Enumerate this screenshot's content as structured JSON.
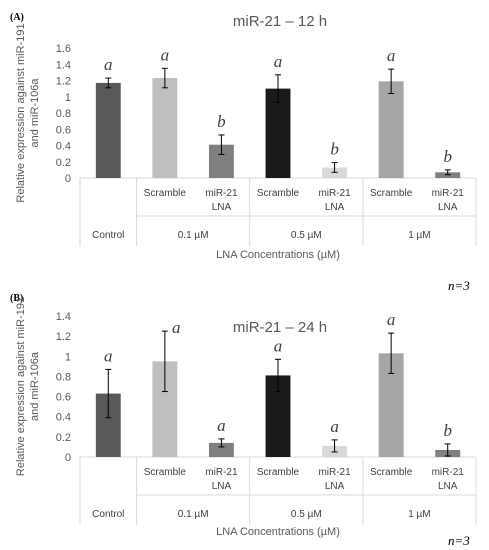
{
  "chart_data": [
    {
      "type": "bar",
      "panel_label": "(A)",
      "title": "miR-21 – 12 h",
      "ylabel_line1": "Relative expression against miR-191",
      "ylabel_line2": "and miR-106a",
      "xlabel": "LNA Concentrations (µM)",
      "n_label": "n=3",
      "ylim": [
        0,
        1.6
      ],
      "yticks": [
        "0",
        "0.2",
        "0.4",
        "0.6",
        "0.8",
        "1",
        "1.2",
        "1.4",
        "1.6"
      ],
      "grid": false,
      "groups": [
        "Control",
        "0.1 µM",
        "0.5 µM",
        "1 µM"
      ],
      "bars": [
        {
          "group": 0,
          "category": "",
          "value": 1.17,
          "error": 0.06,
          "color": "#595959",
          "sig": "a"
        },
        {
          "group": 1,
          "category": "Scramble",
          "value": 1.23,
          "error": 0.12,
          "color": "#bfbfbf",
          "sig": "a"
        },
        {
          "group": 1,
          "category": "miR-21 LNA",
          "value": 0.41,
          "error": 0.12,
          "color": "#7f7f7f",
          "sig": "b"
        },
        {
          "group": 2,
          "category": "Scramble",
          "value": 1.1,
          "error": 0.17,
          "color": "#1a1a1a",
          "sig": "a"
        },
        {
          "group": 2,
          "category": "miR-21 LNA",
          "value": 0.13,
          "error": 0.06,
          "color": "#d9d9d9",
          "sig": "b"
        },
        {
          "group": 3,
          "category": "Scramble",
          "value": 1.19,
          "error": 0.15,
          "color": "#a6a6a6",
          "sig": "a"
        },
        {
          "group": 3,
          "category": "miR-21 LNA",
          "value": 0.07,
          "error": 0.03,
          "color": "#808080",
          "sig": "b"
        }
      ]
    },
    {
      "type": "bar",
      "panel_label": "(B)",
      "title": "miR-21 – 24 h",
      "title_sig": "a",
      "ylabel_line1": "Relative expression against miR-191",
      "ylabel_line2": "and miR-106a",
      "xlabel": "LNA Concentrations (µM)",
      "n_label": "n=3",
      "ylim": [
        0,
        1.4
      ],
      "yticks": [
        "0",
        "0.2",
        "0.4",
        "0.6",
        "0.8",
        "1",
        "1.2",
        "1.4"
      ],
      "grid": false,
      "groups": [
        "Control",
        "0.1 µM",
        "0.5 µM",
        "1 µM"
      ],
      "bars": [
        {
          "group": 0,
          "category": "",
          "value": 0.63,
          "error": 0.24,
          "color": "#595959",
          "sig": "a"
        },
        {
          "group": 1,
          "category": "Scramble",
          "value": 0.95,
          "error": 0.3,
          "color": "#bfbfbf",
          "sig": ""
        },
        {
          "group": 1,
          "category": "miR-21 LNA",
          "value": 0.14,
          "error": 0.04,
          "color": "#7f7f7f",
          "sig": "a"
        },
        {
          "group": 2,
          "category": "Scramble",
          "value": 0.81,
          "error": 0.16,
          "color": "#1a1a1a",
          "sig": "a"
        },
        {
          "group": 2,
          "category": "miR-21 LNA",
          "value": 0.11,
          "error": 0.06,
          "color": "#d9d9d9",
          "sig": "a"
        },
        {
          "group": 3,
          "category": "Scramble",
          "value": 1.03,
          "error": 0.2,
          "color": "#a6a6a6",
          "sig": "a"
        },
        {
          "group": 3,
          "category": "miR-21 LNA",
          "value": 0.07,
          "error": 0.06,
          "color": "#808080",
          "sig": "b"
        }
      ]
    }
  ]
}
